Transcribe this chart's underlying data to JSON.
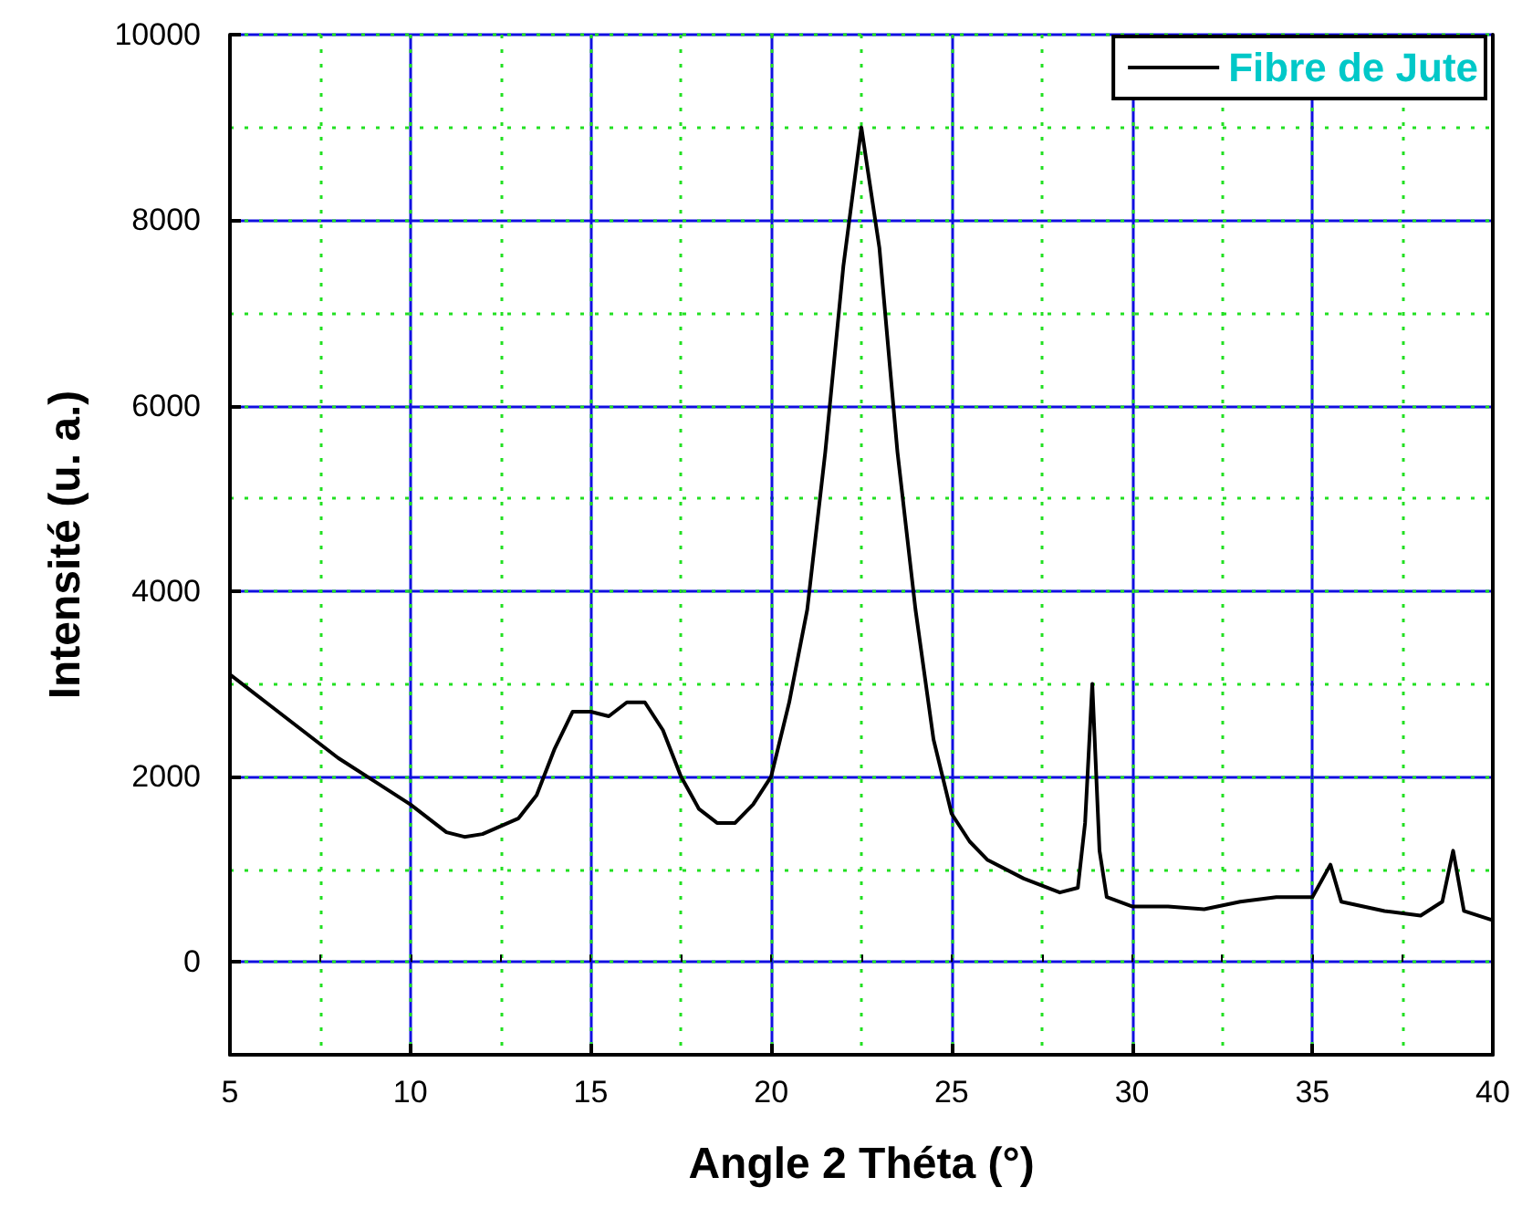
{
  "chart_data": {
    "type": "line",
    "xlabel": "Angle 2 Théta (°)",
    "ylabel": "Intensité (u. a.)",
    "xlim": [
      5,
      40
    ],
    "xticks": [
      5,
      10,
      15,
      20,
      25,
      30,
      35,
      40
    ],
    "ylim": [
      -1000,
      10000
    ],
    "yticks": [
      0,
      2000,
      4000,
      6000,
      8000,
      10000
    ],
    "grid": true,
    "legend": "top right",
    "marker": "none",
    "line_style": "solid",
    "series": [
      {
        "name": "Fibre de Jute",
        "color": "#000000",
        "x": [
          5,
          6,
          7,
          8,
          9,
          10,
          11,
          11.5,
          12,
          13,
          13.5,
          14,
          14.5,
          15,
          15.5,
          16,
          16.5,
          17,
          17.5,
          18,
          18.5,
          19,
          19.5,
          20,
          20.5,
          21,
          21.5,
          22,
          22.5,
          23,
          23.5,
          24,
          24.5,
          25,
          25.5,
          26,
          27,
          28,
          28.5,
          28.7,
          28.9,
          29.1,
          29.3,
          30,
          31,
          32,
          33,
          34,
          35,
          35.5,
          35.8,
          37,
          38,
          38.6,
          38.9,
          39.2,
          40
        ],
        "values": [
          3100,
          2800,
          2500,
          2200,
          1950,
          1700,
          1400,
          1350,
          1380,
          1550,
          1800,
          2300,
          2700,
          2700,
          2650,
          2800,
          2800,
          2500,
          2000,
          1650,
          1500,
          1500,
          1700,
          2000,
          2800,
          3800,
          5500,
          7500,
          9000,
          7700,
          5500,
          3800,
          2400,
          1600,
          1300,
          1100,
          900,
          750,
          800,
          1500,
          3000,
          1200,
          700,
          600,
          600,
          570,
          650,
          700,
          700,
          1050,
          650,
          550,
          500,
          650,
          1200,
          550,
          450
        ]
      }
    ]
  }
}
